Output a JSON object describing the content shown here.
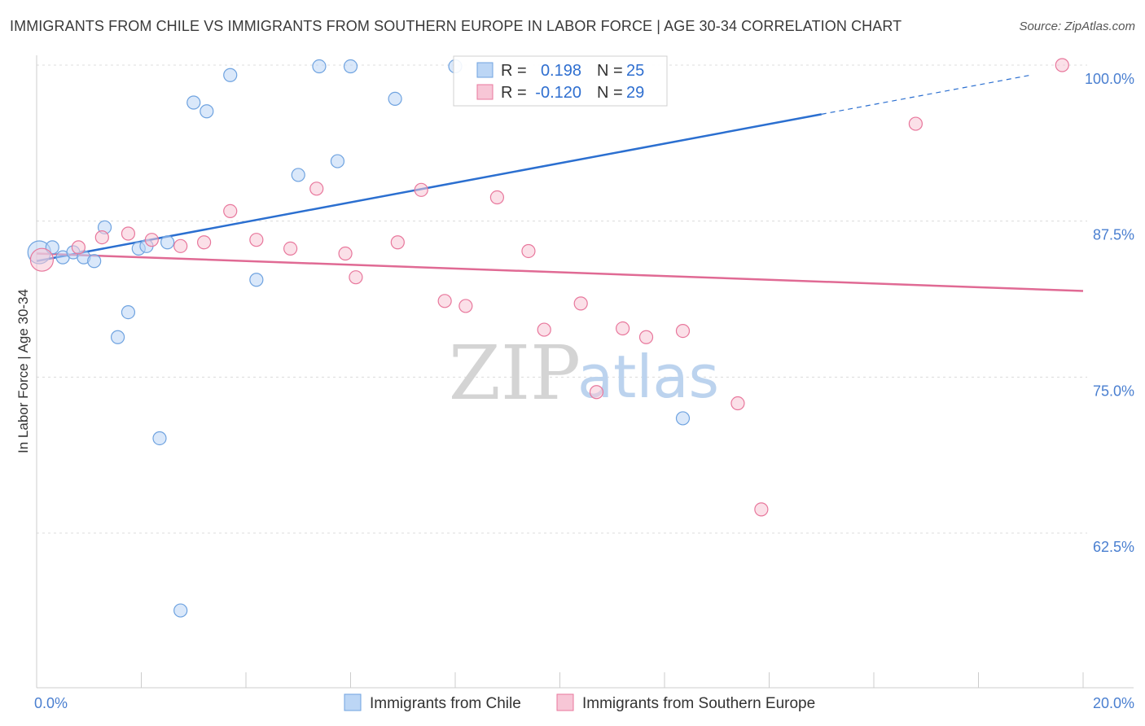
{
  "title": "IMMIGRANTS FROM CHILE VS IMMIGRANTS FROM SOUTHERN EUROPE IN LABOR FORCE | AGE 30-34 CORRELATION CHART",
  "source": "Source: ZipAtlas.com",
  "watermark": {
    "zip": "ZIP",
    "atlas": "atlas"
  },
  "chart_data": {
    "type": "scatter",
    "title": "IMMIGRANTS FROM CHILE VS IMMIGRANTS FROM SOUTHERN EUROPE IN LABOR FORCE | AGE 30-34 CORRELATION CHART",
    "xlabel": "",
    "ylabel": "In Labor Force | Age 30-34",
    "xlim": [
      0,
      20
    ],
    "ylim": [
      50,
      101.5
    ],
    "x_tick_labels": [
      "0.0%",
      "20.0%"
    ],
    "y_ticks": [
      62.5,
      75.0,
      87.5,
      100.0
    ],
    "y_tick_labels": [
      "62.5%",
      "75.0%",
      "87.5%",
      "100.0%"
    ],
    "grid": true,
    "legend_position": "top-center",
    "series": [
      {
        "name": "Immigrants from Chile",
        "color": "#6fa3e0",
        "fill": "#bcd6f5",
        "stats": {
          "r_label": "R =",
          "r": "0.198",
          "n_label": "N =",
          "n": "25"
        },
        "trend": {
          "x0": 0,
          "y0": 84.3,
          "x1": 19.0,
          "y1": 99.2,
          "solid_until_x": 15.0
        },
        "points": [
          {
            "x": 0.05,
            "y": 85.0,
            "big": true
          },
          {
            "x": 0.3,
            "y": 85.4
          },
          {
            "x": 0.5,
            "y": 84.6
          },
          {
            "x": 0.7,
            "y": 85.0
          },
          {
            "x": 0.9,
            "y": 84.6
          },
          {
            "x": 1.1,
            "y": 84.3
          },
          {
            "x": 1.3,
            "y": 87.0
          },
          {
            "x": 1.55,
            "y": 78.2
          },
          {
            "x": 1.75,
            "y": 80.2
          },
          {
            "x": 1.95,
            "y": 85.3
          },
          {
            "x": 2.1,
            "y": 85.5
          },
          {
            "x": 2.35,
            "y": 70.1
          },
          {
            "x": 2.5,
            "y": 85.8
          },
          {
            "x": 2.75,
            "y": 56.3
          },
          {
            "x": 3.0,
            "y": 97.0
          },
          {
            "x": 3.25,
            "y": 96.3
          },
          {
            "x": 3.7,
            "y": 99.2
          },
          {
            "x": 4.2,
            "y": 82.8
          },
          {
            "x": 5.0,
            "y": 91.2
          },
          {
            "x": 5.4,
            "y": 99.9
          },
          {
            "x": 5.75,
            "y": 92.3
          },
          {
            "x": 6.0,
            "y": 99.9
          },
          {
            "x": 6.85,
            "y": 97.3
          },
          {
            "x": 8.0,
            "y": 99.9
          },
          {
            "x": 12.35,
            "y": 71.7
          }
        ]
      },
      {
        "name": "Immigrants from Southern Europe",
        "color": "#e8779c",
        "fill": "#f7c6d6",
        "stats": {
          "r_label": "R =",
          "r": "-0.120",
          "n_label": "N =",
          "n": "29"
        },
        "trend": {
          "x0": 0,
          "y0": 84.9,
          "x1": 20.0,
          "y1": 81.9
        },
        "points": [
          {
            "x": 0.1,
            "y": 84.4,
            "big": true
          },
          {
            "x": 0.8,
            "y": 85.4
          },
          {
            "x": 1.25,
            "y": 86.2
          },
          {
            "x": 1.75,
            "y": 86.5
          },
          {
            "x": 2.2,
            "y": 86.0
          },
          {
            "x": 2.75,
            "y": 85.5
          },
          {
            "x": 3.2,
            "y": 85.8
          },
          {
            "x": 3.7,
            "y": 88.3
          },
          {
            "x": 4.2,
            "y": 86.0
          },
          {
            "x": 4.85,
            "y": 85.3
          },
          {
            "x": 5.35,
            "y": 90.1
          },
          {
            "x": 5.9,
            "y": 84.9
          },
          {
            "x": 6.1,
            "y": 83.0
          },
          {
            "x": 6.9,
            "y": 85.8
          },
          {
            "x": 7.35,
            "y": 90.0
          },
          {
            "x": 7.8,
            "y": 81.1
          },
          {
            "x": 8.2,
            "y": 80.7
          },
          {
            "x": 8.8,
            "y": 89.4
          },
          {
            "x": 9.4,
            "y": 85.1
          },
          {
            "x": 9.7,
            "y": 78.8
          },
          {
            "x": 10.4,
            "y": 80.9
          },
          {
            "x": 10.7,
            "y": 73.8
          },
          {
            "x": 11.2,
            "y": 78.9
          },
          {
            "x": 11.65,
            "y": 78.2
          },
          {
            "x": 12.35,
            "y": 78.7
          },
          {
            "x": 13.4,
            "y": 72.9
          },
          {
            "x": 13.85,
            "y": 64.4
          },
          {
            "x": 16.8,
            "y": 95.3
          },
          {
            "x": 19.6,
            "y": 100.0
          }
        ]
      }
    ]
  }
}
